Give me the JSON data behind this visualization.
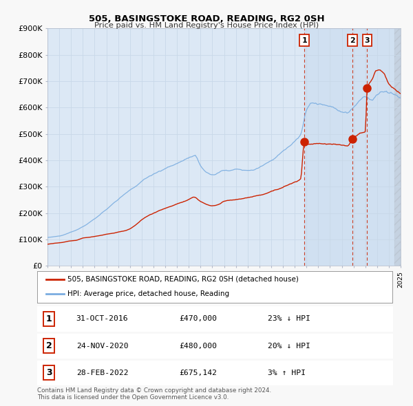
{
  "title": "505, BASINGSTOKE ROAD, READING, RG2 0SH",
  "subtitle": "Price paid vs. HM Land Registry's House Price Index (HPI)",
  "xlim": [
    1995,
    2025
  ],
  "ylim": [
    0,
    900000
  ],
  "yticks": [
    0,
    100000,
    200000,
    300000,
    400000,
    500000,
    600000,
    700000,
    800000,
    900000
  ],
  "ytick_labels": [
    "£0",
    "£100K",
    "£200K",
    "£300K",
    "£400K",
    "£500K",
    "£600K",
    "£700K",
    "£800K",
    "£900K"
  ],
  "plot_bg_color": "#dce8f5",
  "grid_color": "#c8d8e8",
  "shaded_region_color": "#ccddf0",
  "legend_label_red": "505, BASINGSTOKE ROAD, READING, RG2 0SH (detached house)",
  "legend_label_blue": "HPI: Average price, detached house, Reading",
  "transactions": [
    {
      "num": 1,
      "date": "31-OCT-2016",
      "price": "£470,000",
      "hpi_diff": "23% ↓ HPI",
      "year": 2016.83
    },
    {
      "num": 2,
      "date": "24-NOV-2020",
      "price": "£480,000",
      "hpi_diff": "20% ↓ HPI",
      "year": 2020.9
    },
    {
      "num": 3,
      "date": "28-FEB-2022",
      "price": "£675,142",
      "hpi_diff": "3% ↑ HPI",
      "year": 2022.16
    }
  ],
  "transaction_values": [
    470000,
    480000,
    675142
  ],
  "footnote": "Contains HM Land Registry data © Crown copyright and database right 2024.\nThis data is licensed under the Open Government Licence v3.0.",
  "red_color": "#cc2200",
  "blue_color": "#7aade0",
  "dashed_line_color": "#cc2200",
  "white": "#ffffff",
  "fig_bg": "#f8f8f8"
}
